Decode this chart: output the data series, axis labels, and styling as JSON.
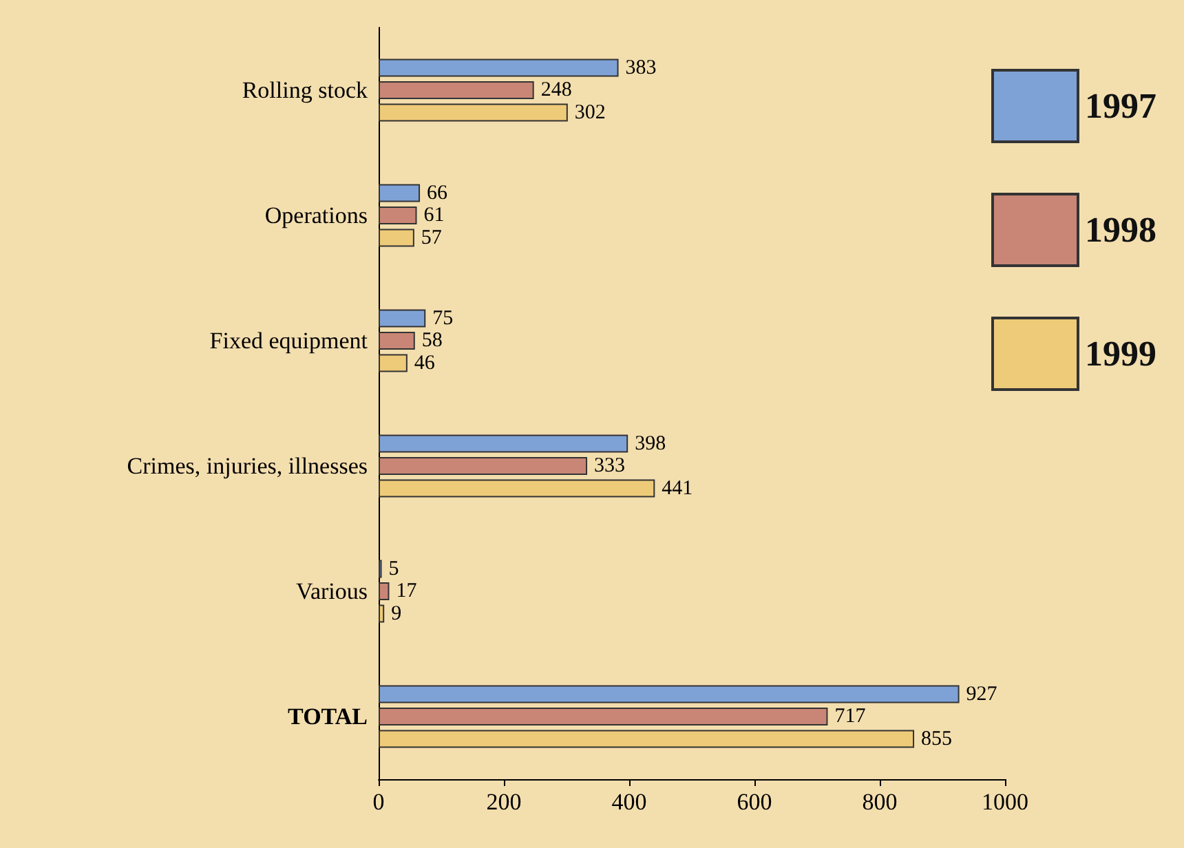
{
  "chart_data": {
    "type": "bar",
    "orientation": "horizontal",
    "categories": [
      "Rolling stock",
      "Operations",
      "Fixed equipment",
      "Crimes, injuries, illnesses",
      "Various",
      "TOTAL"
    ],
    "series": [
      {
        "name": "1997",
        "color": "#7fa2d6",
        "values": [
          383,
          66,
          75,
          398,
          5,
          927
        ]
      },
      {
        "name": "1998",
        "color": "#c98676",
        "values": [
          248,
          61,
          58,
          333,
          17,
          717
        ]
      },
      {
        "name": "1999",
        "color": "#eecb78",
        "values": [
          302,
          57,
          46,
          441,
          9,
          855
        ]
      }
    ],
    "xlim": [
      0,
      1000
    ],
    "xticks": [
      0,
      200,
      400,
      600,
      800,
      1000
    ],
    "data_labels": true,
    "legend": "top right",
    "grid": false
  }
}
